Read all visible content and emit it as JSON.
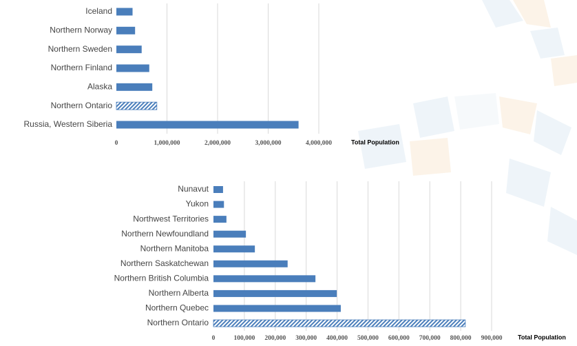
{
  "chart_data": [
    {
      "type": "bar",
      "orientation": "horizontal",
      "x_label": "Total Population",
      "color": "#4a7ebb",
      "grid": true,
      "categories": [
        "Iceland",
        "Northern Norway",
        "Northern Sweden",
        "Northern Finland",
        "Alaska",
        "Northern Ontario",
        "Russia, Western Siberia"
      ],
      "values": [
        320000,
        370000,
        500000,
        650000,
        710000,
        800000,
        3600000
      ],
      "hatched": [
        false,
        false,
        false,
        false,
        false,
        true,
        false
      ],
      "xlim": [
        0,
        4000000
      ],
      "xticks": [
        0,
        {
          "value": 1000000,
          "label": "1,000,000"
        },
        {
          "value": 2000000,
          "label": "2,000,000"
        },
        {
          "value": 3000000,
          "label": "3,000,000"
        },
        {
          "value": 4000000,
          "label": "4,000,000"
        }
      ]
    },
    {
      "type": "bar",
      "orientation": "horizontal",
      "x_label": "Total Population",
      "color": "#4a7ebb",
      "grid": true,
      "categories": [
        "Nunavut",
        "Yukon",
        "Northwest Territories",
        "Northern Newfoundland",
        "Northern Manitoba",
        "Northern Saskatchewan",
        "Northern British Columbia",
        "Northern Alberta",
        "Northern Quebec",
        "Northern Ontario"
      ],
      "values": [
        31000,
        34000,
        42000,
        105000,
        134000,
        240000,
        330000,
        399000,
        412000,
        815000
      ],
      "hatched": [
        false,
        false,
        false,
        false,
        false,
        false,
        false,
        false,
        false,
        true
      ],
      "xlim": [
        0,
        900000
      ],
      "xticks": [
        0,
        {
          "value": 100000,
          "label": "100,000"
        },
        {
          "value": 200000,
          "label": "200,000"
        },
        {
          "value": 300000,
          "label": "300,000"
        },
        {
          "value": 400000,
          "label": "400,000"
        },
        {
          "value": 500000,
          "label": "500,000"
        },
        {
          "value": 600000,
          "label": "600,000"
        },
        {
          "value": 700000,
          "label": "700,000"
        },
        {
          "value": 800000,
          "label": "800,000"
        },
        {
          "value": 900000,
          "label": "900,000"
        }
      ]
    }
  ]
}
